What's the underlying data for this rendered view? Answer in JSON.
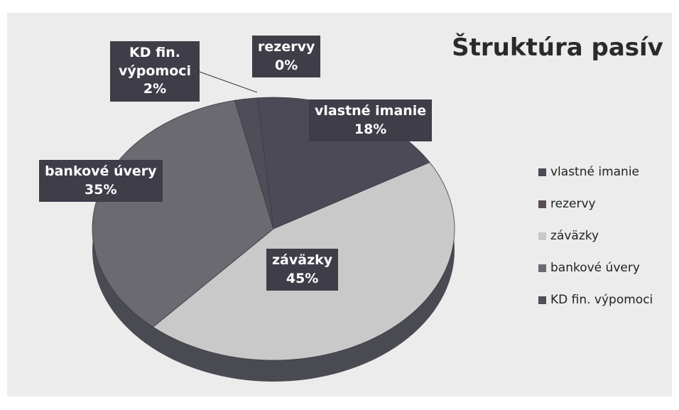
{
  "chart_data": {
    "type": "pie",
    "title": "Štruktúra pasív",
    "categories": [
      "vlastné imanie",
      "rezervy",
      "záväzky",
      "bankové úvery",
      "KD fin. výpomoci"
    ],
    "values": [
      18,
      0,
      45,
      35,
      2
    ],
    "value_labels": [
      "18%",
      "0%",
      "45%",
      "35%",
      "2%"
    ],
    "colors": [
      "#4d4a58",
      "#5b4d55",
      "#c9c9c9",
      "#6a6a70",
      "#4f4d58"
    ],
    "legend": "right"
  }
}
